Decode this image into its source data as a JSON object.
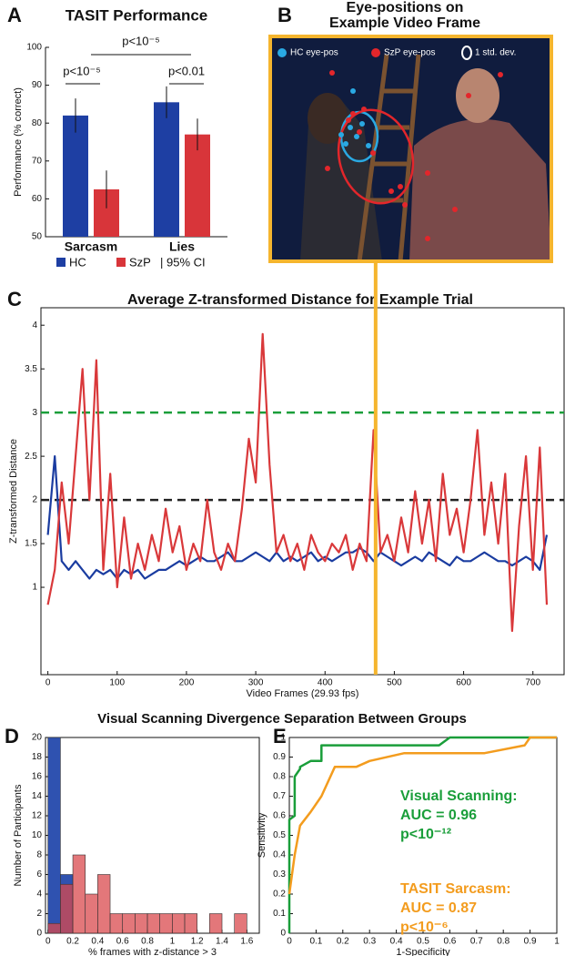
{
  "section_title": "Visual Scanning Divergence Separation Between Groups",
  "chart_data": [
    {
      "type": "bar",
      "panel": "A",
      "title": "TASIT Performance",
      "ylabel": "Performance (% correct)",
      "categories": [
        "Sarcasm",
        "Lies"
      ],
      "series": [
        {
          "name": "HC",
          "color": "#1e3fa3",
          "values": [
            82,
            85.5
          ],
          "errors": [
            4.5,
            4.2
          ]
        },
        {
          "name": "SzP",
          "color": "#d8353a",
          "values": [
            62.5,
            77
          ],
          "errors": [
            5,
            4.2
          ]
        }
      ],
      "ci_label": "| 95% CI",
      "significance": [
        "p<10⁻⁵",
        "p<10⁻⁵",
        "p<0.01"
      ],
      "ylim": [
        50,
        100
      ],
      "yticks": [
        50,
        60,
        70,
        80,
        90,
        100
      ]
    },
    {
      "type": "image",
      "panel": "B",
      "title": [
        "Eye-positions on",
        "Example Video Frame"
      ],
      "legend": [
        {
          "name": "HC eye-pos",
          "color": "#2aa9e3"
        },
        {
          "name": "SzP eye-pos",
          "color": "#e3262b"
        },
        {
          "name": "1 std. dev.",
          "color": "#ffffff"
        }
      ],
      "frame_color": "#f5b52e"
    },
    {
      "type": "line",
      "panel": "C",
      "title": "Average Z-transformed Distance for Example Trial",
      "xlabel": "Video Frames (29.93 fps)",
      "ylabel": "Z-transformed Distance",
      "x": [
        0,
        10,
        20,
        30,
        40,
        50,
        60,
        70,
        80,
        90,
        100,
        110,
        120,
        130,
        140,
        150,
        160,
        170,
        180,
        190,
        200,
        210,
        220,
        230,
        240,
        250,
        260,
        270,
        280,
        290,
        300,
        310,
        320,
        330,
        340,
        350,
        360,
        370,
        380,
        390,
        400,
        410,
        420,
        430,
        440,
        450,
        460,
        470,
        480,
        490,
        500,
        510,
        520,
        530,
        540,
        550,
        560,
        570,
        580,
        590,
        600,
        610,
        620,
        630,
        640,
        650,
        660,
        670,
        680,
        690,
        700,
        710,
        720
      ],
      "series": [
        {
          "color": "#1a3ca0",
          "values": [
            1.6,
            2.5,
            1.3,
            1.2,
            1.3,
            1.2,
            1.1,
            1.2,
            1.15,
            1.2,
            1.1,
            1.2,
            1.15,
            1.2,
            1.1,
            1.15,
            1.2,
            1.2,
            1.25,
            1.3,
            1.25,
            1.3,
            1.35,
            1.3,
            1.3,
            1.35,
            1.4,
            1.3,
            1.3,
            1.35,
            1.4,
            1.35,
            1.3,
            1.4,
            1.3,
            1.35,
            1.3,
            1.35,
            1.4,
            1.3,
            1.35,
            1.3,
            1.35,
            1.4,
            1.4,
            1.45,
            1.4,
            1.3,
            1.4,
            1.35,
            1.3,
            1.25,
            1.3,
            1.35,
            1.3,
            1.4,
            1.35,
            1.3,
            1.25,
            1.35,
            1.3,
            1.3,
            1.35,
            1.4,
            1.35,
            1.3,
            1.3,
            1.25,
            1.3,
            1.35,
            1.3,
            1.2,
            1.6
          ]
        },
        {
          "color": "#d9383a",
          "values": [
            0.8,
            1.2,
            2.2,
            1.5,
            2.5,
            3.5,
            2.0,
            3.6,
            1.2,
            2.3,
            1.0,
            1.8,
            1.1,
            1.5,
            1.2,
            1.6,
            1.3,
            1.9,
            1.4,
            1.7,
            1.2,
            1.5,
            1.3,
            2.0,
            1.4,
            1.2,
            1.5,
            1.3,
            1.9,
            2.7,
            2.2,
            3.9,
            2.4,
            1.4,
            1.6,
            1.3,
            1.5,
            1.2,
            1.6,
            1.4,
            1.3,
            1.5,
            1.4,
            1.6,
            1.2,
            1.5,
            1.3,
            2.8,
            1.4,
            1.6,
            1.3,
            1.8,
            1.4,
            2.1,
            1.5,
            2.0,
            1.3,
            2.3,
            1.6,
            1.9,
            1.4,
            2.0,
            2.8,
            1.6,
            2.2,
            1.5,
            2.3,
            0.5,
            1.7,
            2.5,
            1.2,
            2.6,
            0.8
          ]
        }
      ],
      "reference_lines": [
        {
          "value": 2,
          "color": "#222222"
        },
        {
          "value": 3,
          "color": "#1a9e3a"
        }
      ],
      "highlight_x": 473,
      "highlight_color": "#f5b52e",
      "xlim": [
        -10,
        745
      ],
      "xticks": [
        0,
        100,
        200,
        300,
        400,
        500,
        600,
        700
      ],
      "ylim": [
        0,
        4.2
      ],
      "yticks": [
        1,
        1.5,
        2,
        2.5,
        3,
        3.5,
        4
      ]
    },
    {
      "type": "histogram",
      "panel": "D",
      "xlabel": "% frames with z-distance > 3",
      "ylabel": "Number of Participants",
      "bins": [
        0,
        0.1,
        0.2,
        0.3,
        0.4,
        0.5,
        0.6,
        0.7,
        0.8,
        0.9,
        1.0,
        1.1,
        1.2,
        1.3,
        1.4,
        1.5,
        1.6
      ],
      "series": [
        {
          "color": "#2f52b0",
          "values": [
            20,
            6,
            0,
            0,
            0,
            0,
            0,
            0,
            0,
            0,
            0,
            0,
            0,
            0,
            0,
            0
          ]
        },
        {
          "color": "#d94a4e",
          "values": [
            1,
            5,
            8,
            4,
            6,
            2,
            2,
            2,
            2,
            2,
            2,
            2,
            0,
            2,
            0,
            2
          ]
        }
      ],
      "xlim": [
        -0.02,
        1.7
      ],
      "xticks": [
        0,
        0.2,
        0.4,
        0.6,
        0.8,
        1,
        1.2,
        1.4,
        1.6
      ],
      "ylim": [
        0,
        20
      ],
      "yticks": [
        0,
        2,
        4,
        6,
        8,
        10,
        12,
        14,
        16,
        18,
        20
      ]
    },
    {
      "type": "line",
      "panel": "E",
      "xlabel": "1-Specificity",
      "ylabel": "Sensitivity",
      "series": [
        {
          "color": "#1a9e3a",
          "x": [
            0,
            0,
            0.02,
            0.02,
            0.04,
            0.04,
            0.08,
            0.12,
            0.12,
            0.56,
            0.6,
            1
          ],
          "values": [
            0,
            0.58,
            0.6,
            0.8,
            0.84,
            0.85,
            0.88,
            0.88,
            0.96,
            0.96,
            1,
            1
          ]
        },
        {
          "color": "#f39c1e",
          "x": [
            0,
            0.02,
            0.04,
            0.08,
            0.12,
            0.17,
            0.25,
            0.3,
            0.43,
            0.73,
            0.88,
            0.9,
            0.94,
            1
          ],
          "values": [
            0.2,
            0.4,
            0.55,
            0.62,
            0.7,
            0.85,
            0.85,
            0.88,
            0.92,
            0.92,
            0.96,
            1,
            1,
            1
          ]
        }
      ],
      "annotations": [
        {
          "color": "#1a9e3a",
          "lines": [
            "Visual Scanning:",
            "AUC = 0.96",
            "p<10⁻¹²"
          ]
        },
        {
          "color": "#f39c1e",
          "lines": [
            "TASIT Sarcasm:",
            "AUC = 0.87",
            "p<10⁻⁶"
          ]
        }
      ],
      "xlim": [
        0,
        1
      ],
      "xticks": [
        0,
        0.1,
        0.2,
        0.3,
        0.4,
        0.5,
        0.6,
        0.7,
        0.8,
        0.9,
        1
      ],
      "ylim": [
        0,
        1
      ],
      "yticks": [
        0,
        0.1,
        0.2,
        0.3,
        0.4,
        0.5,
        0.6,
        0.7,
        0.8,
        0.9,
        1
      ]
    }
  ]
}
